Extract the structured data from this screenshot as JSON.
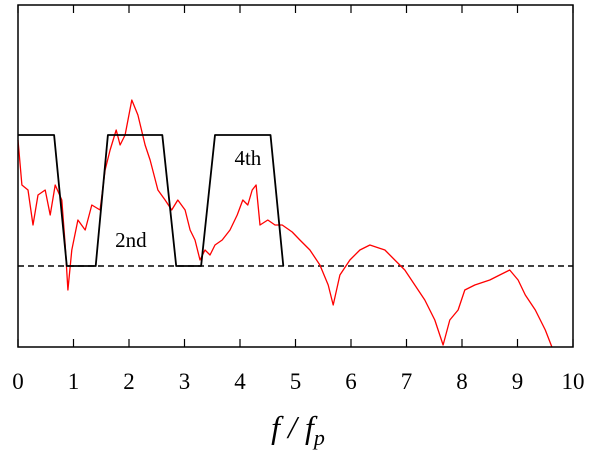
{
  "chart_data": {
    "type": "line",
    "xlabel": {
      "text": "f / f",
      "subscript": "p"
    },
    "xlim": [
      0,
      10
    ],
    "xticks": [
      0,
      1,
      2,
      3,
      4,
      5,
      6,
      7,
      8,
      9,
      10
    ],
    "ylim": [
      0,
      342
    ],
    "annotations": [
      {
        "text": "2nd",
        "x": 1.75,
        "y": 100
      },
      {
        "text": "4th",
        "x": 3.9,
        "y": 182
      }
    ],
    "reference_line": {
      "value": 81,
      "color": "#000000",
      "style": "dashed"
    },
    "series": [
      {
        "color": "#ff0000",
        "x": [
          0,
          0.07,
          0.18,
          0.27,
          0.36,
          0.49,
          0.58,
          0.67,
          0.79,
          0.85,
          0.9,
          0.97,
          1.08,
          1.21,
          1.33,
          1.48,
          1.57,
          1.66,
          1.77,
          1.84,
          1.93,
          2.05,
          2.16,
          2.29,
          2.38,
          2.52,
          2.65,
          2.77,
          2.88,
          3.01,
          3.1,
          3.19,
          3.28,
          3.37,
          3.46,
          3.55,
          3.68,
          3.82,
          3.95,
          4.05,
          4.14,
          4.22,
          4.29,
          4.36,
          4.5,
          4.63,
          4.76,
          4.94,
          5.08,
          5.26,
          5.44,
          5.59,
          5.68,
          5.8,
          5.98,
          6.16,
          6.34,
          6.61,
          6.79,
          6.97,
          7.15,
          7.33,
          7.51,
          7.66,
          7.78,
          7.93,
          8.05,
          8.23,
          8.5,
          8.68,
          8.86,
          9.01,
          9.14,
          9.32,
          9.5,
          9.62
        ],
        "values": [
          207,
          162,
          157,
          122,
          152,
          157,
          132,
          162,
          147,
          102,
          57,
          97,
          127,
          117,
          142,
          137,
          177,
          197,
          217,
          202,
          212,
          247,
          232,
          202,
          187,
          157,
          147,
          137,
          147,
          137,
          117,
          107,
          87,
          97,
          92,
          102,
          107,
          117,
          132,
          147,
          142,
          157,
          162,
          122,
          127,
          122,
          122,
          115,
          107,
          97,
          82,
          62,
          42,
          72,
          87,
          97,
          102,
          97,
          87,
          77,
          62,
          47,
          27,
          2,
          27,
          37,
          57,
          62,
          67,
          72,
          77,
          67,
          52,
          37,
          17,
          0
        ]
      },
      {
        "color": "#000000",
        "x": [
          0,
          0.65,
          0.88,
          1.4,
          1.62,
          2.6,
          2.85,
          3.3,
          3.55,
          4.55,
          4.78
        ],
        "values": [
          212,
          212,
          81,
          81,
          212,
          212,
          81,
          81,
          212,
          212,
          81
        ]
      }
    ]
  }
}
